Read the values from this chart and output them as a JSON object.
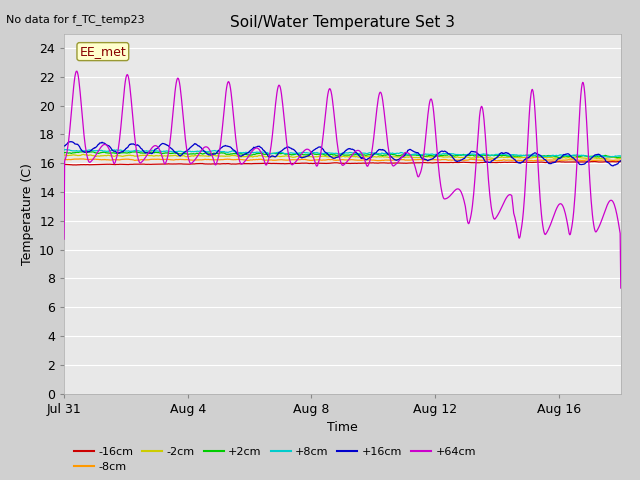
{
  "title": "Soil/Water Temperature Set 3",
  "no_data_text": "No data for f_TC_temp23",
  "xlabel": "Time",
  "ylabel": "Temperature (C)",
  "ylim": [
    0,
    25
  ],
  "yticks": [
    0,
    2,
    4,
    6,
    8,
    10,
    12,
    14,
    16,
    18,
    20,
    22,
    24
  ],
  "xtick_labels": [
    "Jul 31",
    "Aug 4",
    "Aug 8",
    "Aug 12",
    "Aug 16"
  ],
  "xtick_positions": [
    0,
    4,
    8,
    12,
    16
  ],
  "legend_labels": [
    "-16cm",
    "-8cm",
    "-2cm",
    "+2cm",
    "+8cm",
    "+16cm",
    "+64cm"
  ],
  "legend_colors": [
    "#cc0000",
    "#ff9900",
    "#cccc00",
    "#00cc00",
    "#00cccc",
    "#0000cc",
    "#cc00cc"
  ],
  "ee_met_box_facecolor": "#ffffcc",
  "ee_met_box_edgecolor": "#999933",
  "ee_met_text_color": "#880000",
  "fig_facecolor": "#d0d0d0",
  "plot_facecolor": "#e8e8e8",
  "grid_color": "#ffffff",
  "title_fontsize": 11,
  "label_fontsize": 9,
  "tick_fontsize": 9
}
